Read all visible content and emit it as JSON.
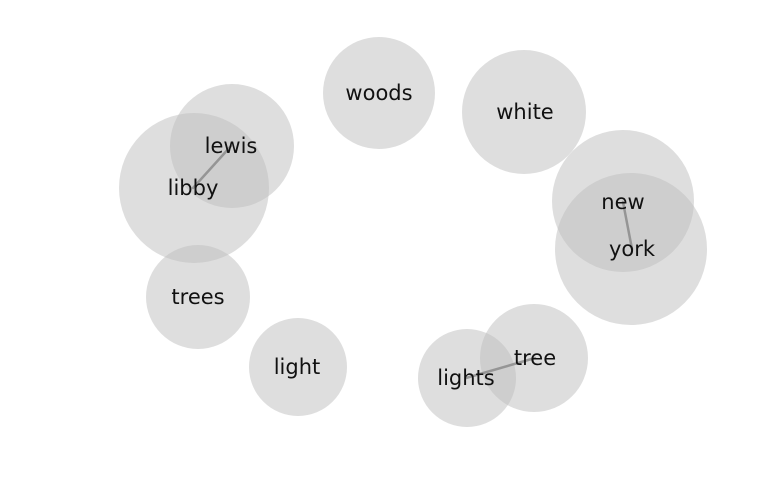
{
  "bubble_color": "#bdbdbd",
  "link_color": "#8c8c8c",
  "words": [
    {
      "id": "woods",
      "text": "woods"
    },
    {
      "id": "white",
      "text": "white"
    },
    {
      "id": "lewis",
      "text": "lewis"
    },
    {
      "id": "libby",
      "text": "libby"
    },
    {
      "id": "new",
      "text": "new"
    },
    {
      "id": "york",
      "text": "york"
    },
    {
      "id": "trees",
      "text": "trees"
    },
    {
      "id": "light",
      "text": "light"
    },
    {
      "id": "tree",
      "text": "tree"
    },
    {
      "id": "lights",
      "text": "lights"
    }
  ],
  "links": [
    {
      "from": "lewis",
      "to": "libby"
    },
    {
      "from": "new",
      "to": "york"
    },
    {
      "from": "tree",
      "to": "lights"
    }
  ]
}
